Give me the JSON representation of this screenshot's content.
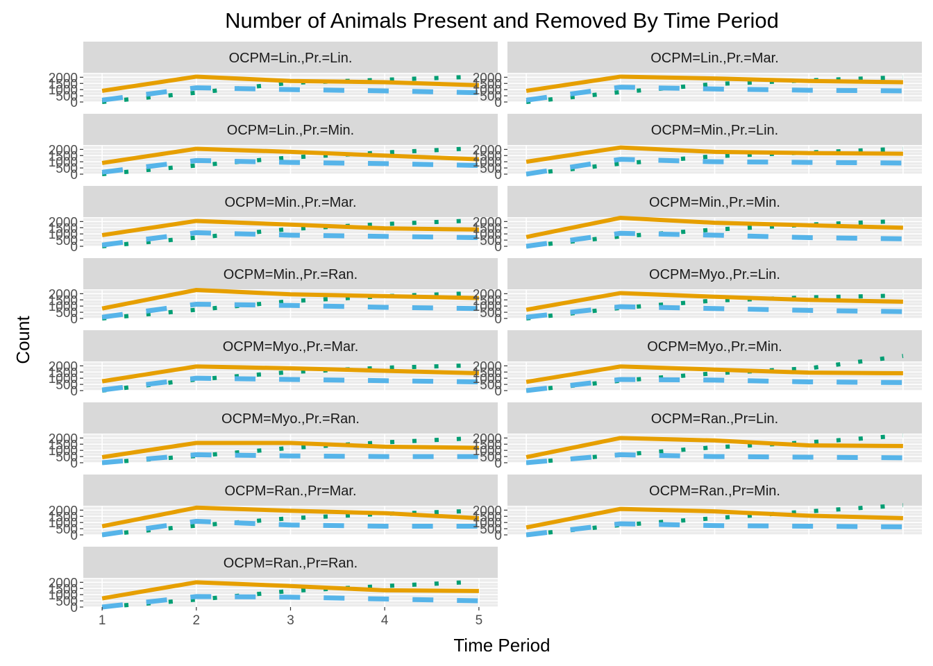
{
  "chart_data": {
    "type": "line",
    "title": "Number of Animals Present and Removed By Time Period",
    "xlabel": "Time Period",
    "ylabel": "Count",
    "x_ticks": [
      1,
      2,
      3,
      4,
      5
    ],
    "y_ticks": [
      0,
      500,
      1000,
      1500,
      2000
    ],
    "y_tick_labels": [
      "0",
      "500",
      "1000",
      "1500",
      "2000"
    ],
    "ylim": [
      0,
      2300
    ],
    "grid": true,
    "colors": {
      "panel_bg": "#ebebeb",
      "strip_bg": "#d9d9d9",
      "grid_major": "#ffffff",
      "orange": "#E69F00",
      "blue": "#56B4E9",
      "green": "#009E73"
    },
    "panels": [
      {
        "label": "OCPM=Lin.,Pr.=Lin.",
        "x": [
          1,
          2,
          3,
          4,
          5
        ],
        "orange": [
          900,
          2050,
          1700,
          1600,
          1350
        ],
        "blue": [
          150,
          1150,
          1000,
          900,
          750
        ],
        "green": [
          0,
          750,
          1550,
          1800,
          2050
        ]
      },
      {
        "label": "OCPM=Lin.,Pr.=Mar.",
        "x": [
          1,
          2,
          3,
          4,
          5
        ],
        "orange": [
          900,
          2050,
          1900,
          1700,
          1600
        ],
        "blue": [
          150,
          1200,
          1050,
          950,
          900
        ],
        "green": [
          0,
          800,
          1450,
          1750,
          2000
        ]
      },
      {
        "label": "OCPM=Lin.,Pr.=Min.",
        "x": [
          1,
          2,
          3,
          4,
          5
        ],
        "orange": [
          900,
          2050,
          1800,
          1500,
          1200
        ],
        "blue": [
          150,
          1100,
          950,
          850,
          700
        ],
        "green": [
          0,
          700,
          1350,
          1750,
          2100
        ]
      },
      {
        "label": "OCPM=Min.,Pr.=Lin.",
        "x": [
          1,
          2,
          3,
          4,
          5
        ],
        "orange": [
          1000,
          2150,
          1800,
          1700,
          1650
        ],
        "blue": [
          0,
          1200,
          1000,
          950,
          900
        ],
        "green": [
          0,
          850,
          1450,
          1750,
          2050
        ]
      },
      {
        "label": "OCPM=Min.,Pr.=Mar.",
        "x": [
          1,
          2,
          3,
          4,
          5
        ],
        "orange": [
          900,
          2050,
          1750,
          1450,
          1350
        ],
        "blue": [
          100,
          1100,
          900,
          800,
          700
        ],
        "green": [
          0,
          700,
          1400,
          1800,
          2100
        ]
      },
      {
        "label": "OCPM=Min.,Pr.=Min.",
        "x": [
          1,
          2,
          3,
          4,
          5
        ],
        "orange": [
          750,
          2300,
          1900,
          1700,
          1500
        ],
        "blue": [
          0,
          1050,
          900,
          700,
          600
        ],
        "green": [
          0,
          800,
          1350,
          1750,
          2050
        ]
      },
      {
        "label": "OCPM=Min.,Pr.=Ran.",
        "x": [
          1,
          2,
          3,
          4,
          5
        ],
        "orange": [
          800,
          2300,
          1950,
          1800,
          1650
        ],
        "blue": [
          100,
          1150,
          1050,
          900,
          800
        ],
        "green": [
          0,
          700,
          1400,
          1800,
          2050
        ]
      },
      {
        "label": "OCPM=Myo.,Pr.=Lin.",
        "x": [
          1,
          2,
          3,
          4,
          5
        ],
        "orange": [
          700,
          2050,
          1750,
          1500,
          1350
        ],
        "blue": [
          100,
          950,
          800,
          650,
          550
        ],
        "green": [
          0,
          850,
          1450,
          1700,
          1850
        ]
      },
      {
        "label": "OCPM=Myo.,Pr.=Mar.",
        "x": [
          1,
          2,
          3,
          4,
          5
        ],
        "orange": [
          750,
          1950,
          1800,
          1600,
          1400
        ],
        "blue": [
          50,
          1000,
          900,
          800,
          700
        ],
        "green": [
          0,
          900,
          1500,
          1850,
          2050
        ]
      },
      {
        "label": "OCPM=Myo.,Pr.=Min.",
        "x": [
          1,
          2,
          3,
          4,
          5
        ],
        "orange": [
          700,
          1950,
          1700,
          1450,
          1400
        ],
        "blue": [
          0,
          900,
          850,
          700,
          650
        ],
        "green": [
          0,
          800,
          1400,
          1800,
          2800
        ]
      },
      {
        "label": "OCPM=Myo.,Pr.=Ran.",
        "x": [
          1,
          2,
          3,
          4,
          5
        ],
        "orange": [
          450,
          1600,
          1600,
          1300,
          1200
        ],
        "blue": [
          0,
          650,
          550,
          500,
          500
        ],
        "green": [
          0,
          550,
          1200,
          1650,
          2000
        ]
      },
      {
        "label": "OCPM=Ran.,Pr=Lin.",
        "x": [
          1,
          2,
          3,
          4,
          5
        ],
        "orange": [
          450,
          2000,
          1800,
          1400,
          1350
        ],
        "blue": [
          0,
          650,
          500,
          450,
          400
        ],
        "green": [
          0,
          650,
          1250,
          1650,
          2200
        ]
      },
      {
        "label": "OCPM=Ran.,Pr=Mar.",
        "x": [
          1,
          2,
          3,
          4,
          5
        ],
        "orange": [
          700,
          2200,
          1950,
          1750,
          1350
        ],
        "blue": [
          0,
          1100,
          800,
          700,
          700
        ],
        "green": [
          0,
          750,
          1350,
          1700,
          1950
        ]
      },
      {
        "label": "OCPM=Ran.,Pr=Min.",
        "x": [
          1,
          2,
          3,
          4,
          5
        ],
        "orange": [
          600,
          2100,
          1900,
          1550,
          1350
        ],
        "blue": [
          0,
          900,
          750,
          700,
          650
        ],
        "green": [
          0,
          800,
          1350,
          1900,
          2400
        ]
      },
      {
        "label": "OCPM=Ran.,Pr=Ran.",
        "x": [
          1,
          2,
          3,
          4,
          5
        ],
        "orange": [
          700,
          2000,
          1700,
          1350,
          1300
        ],
        "blue": [
          0,
          850,
          800,
          650,
          500
        ],
        "green": [
          0,
          600,
          1300,
          1700,
          2050
        ]
      }
    ]
  }
}
